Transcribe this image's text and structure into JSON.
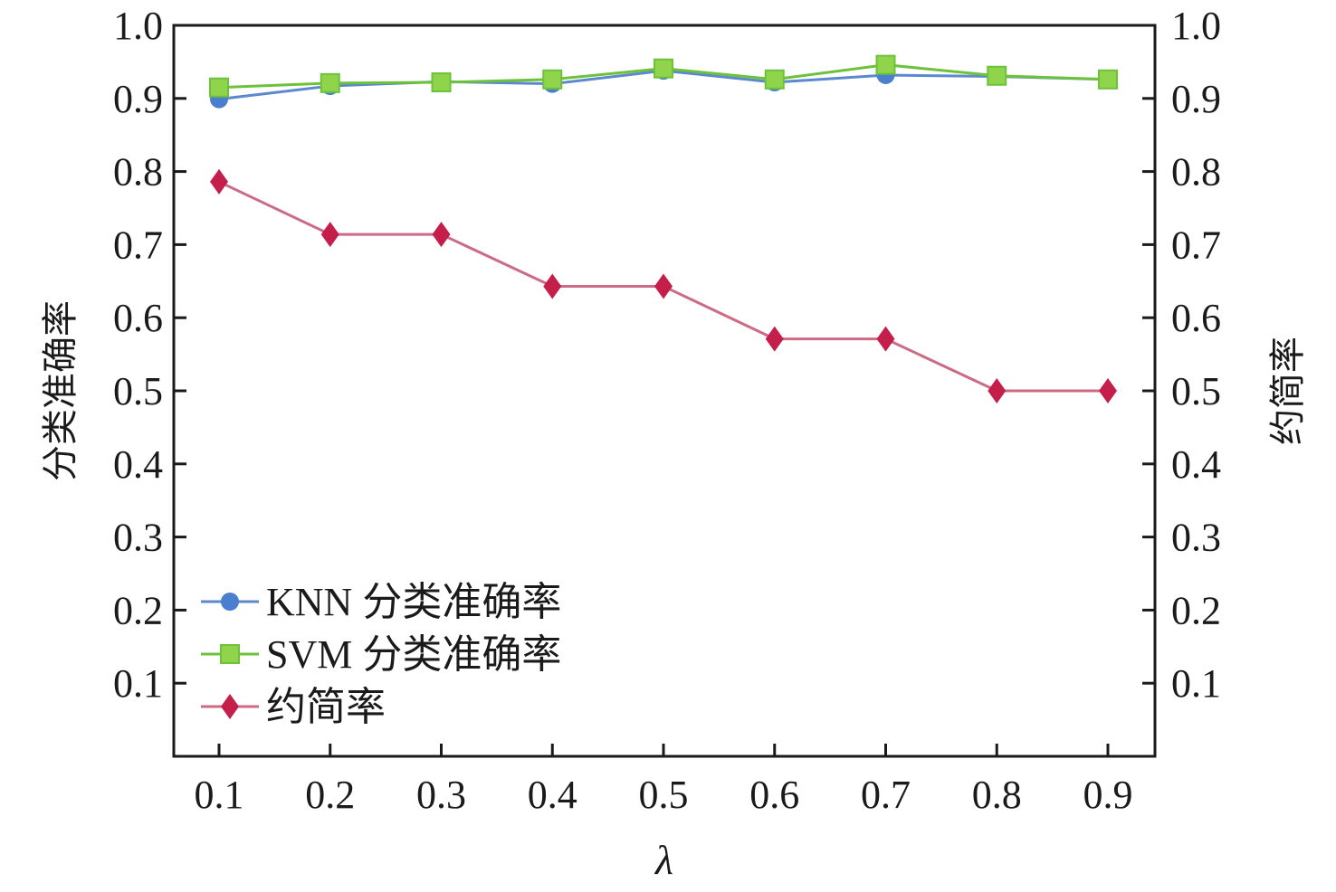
{
  "chart_data": {
    "type": "line",
    "title": "",
    "xlabel": "λ",
    "ylabel_left": "分类准确率",
    "ylabel_right": "约简率",
    "x": [
      0.1,
      0.2,
      0.3,
      0.4,
      0.5,
      0.6,
      0.7,
      0.8,
      0.9
    ],
    "x_tick_labels": [
      "0.1",
      "0.2",
      "0.3",
      "0.4",
      "0.5",
      "0.6",
      "0.7",
      "0.8",
      "0.9"
    ],
    "y_tick_labels": [
      "0.1",
      "0.2",
      "0.3",
      "0.4",
      "0.5",
      "0.6",
      "0.7",
      "0.8",
      "0.9",
      "1.0"
    ],
    "ylim": [
      0,
      1.0
    ],
    "grid": false,
    "legend_position": "bottom-left",
    "series": [
      {
        "name": "KNN 分类准确率",
        "marker": "circle",
        "color": "#4a7fd0",
        "line_color": "#5b88cf",
        "values": [
          0.899,
          0.917,
          0.923,
          0.92,
          0.938,
          0.922,
          0.932,
          0.93,
          0.926
        ]
      },
      {
        "name": "SVM 分类准确率",
        "marker": "square",
        "color": "#8fd44a",
        "line_color": "#6cc23a",
        "values": [
          0.915,
          0.921,
          0.922,
          0.926,
          0.941,
          0.926,
          0.946,
          0.931,
          0.926
        ]
      },
      {
        "name": "约简率",
        "marker": "diamond",
        "color": "#c41e4a",
        "line_color": "#cc6b86",
        "values": [
          0.786,
          0.714,
          0.714,
          0.643,
          0.643,
          0.571,
          0.571,
          0.5,
          0.5
        ]
      }
    ]
  }
}
